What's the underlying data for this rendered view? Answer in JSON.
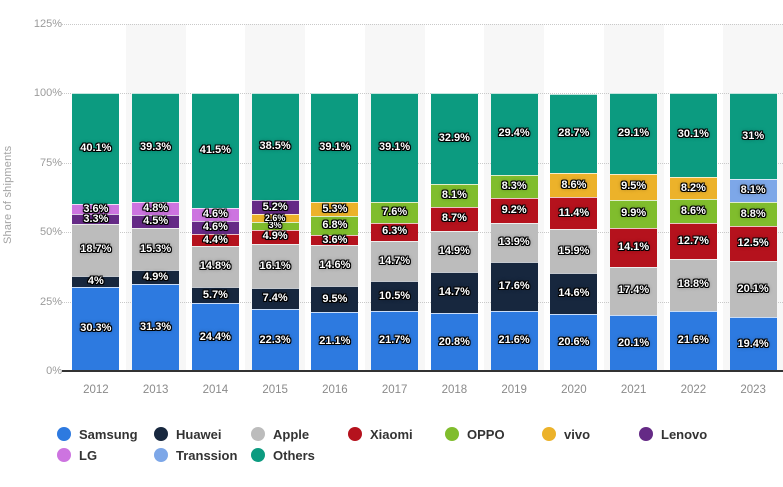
{
  "chart_data": {
    "type": "bar",
    "stacked": true,
    "title": "",
    "ylabel": "Share of shipments",
    "xlabel": "",
    "ylim": [
      0,
      125
    ],
    "yticks": [
      "0%",
      "25%",
      "50%",
      "75%",
      "100%",
      "125%"
    ],
    "grid": "horizontal dotted",
    "legend_position": "bottom",
    "plot_band_color": "#f7f7f7",
    "categories": [
      "2012",
      "2013",
      "2014",
      "2015",
      "2016",
      "2017",
      "2018",
      "2019",
      "2020",
      "2021",
      "2022",
      "2023"
    ],
    "series": [
      {
        "name": "Samsung",
        "color": "#2d7ae0",
        "values": [
          30.3,
          31.3,
          24.4,
          22.3,
          21.1,
          21.7,
          20.8,
          21.6,
          20.6,
          20.1,
          21.6,
          19.4
        ]
      },
      {
        "name": "Huawei",
        "color": "#17273e",
        "values": [
          4,
          4.9,
          5.7,
          7.4,
          9.5,
          10.5,
          14.7,
          17.6,
          14.6,
          null,
          null,
          null
        ]
      },
      {
        "name": "Apple",
        "color": "#bcbcbc",
        "values": [
          18.7,
          15.3,
          14.8,
          16.1,
          14.6,
          14.7,
          14.9,
          13.9,
          15.9,
          17.4,
          18.8,
          20.1
        ]
      },
      {
        "name": "Xiaomi",
        "color": "#b5121d",
        "values": [
          null,
          null,
          4.4,
          4.9,
          3.6,
          6.3,
          8.7,
          9.2,
          11.4,
          14.1,
          12.7,
          12.5
        ]
      },
      {
        "name": "OPPO",
        "color": "#80bd2d",
        "values": [
          null,
          null,
          null,
          3,
          6.8,
          7.6,
          8.1,
          8.3,
          null,
          9.9,
          8.6,
          8.8
        ]
      },
      {
        "name": "vivo",
        "color": "#ecb22a",
        "values": [
          null,
          null,
          null,
          2.6,
          5.3,
          null,
          null,
          null,
          8.6,
          9.5,
          8.2,
          null
        ]
      },
      {
        "name": "Lenovo",
        "color": "#652a86",
        "values": [
          3.3,
          4.5,
          4.6,
          5.2,
          null,
          null,
          null,
          null,
          null,
          null,
          null,
          null
        ]
      },
      {
        "name": "LG",
        "color": "#cd74e0",
        "values": [
          3.6,
          4.8,
          4.6,
          null,
          null,
          null,
          null,
          null,
          null,
          null,
          null,
          null
        ]
      },
      {
        "name": "Transsion",
        "color": "#7da7e8",
        "values": [
          null,
          null,
          null,
          null,
          null,
          null,
          null,
          null,
          null,
          null,
          null,
          8.1
        ]
      },
      {
        "name": "Others",
        "color": "#0c9b80",
        "values": [
          40.1,
          39.3,
          41.5,
          38.5,
          39.1,
          39.1,
          32.9,
          29.4,
          28.7,
          29.1,
          30.1,
          31
        ]
      }
    ]
  }
}
